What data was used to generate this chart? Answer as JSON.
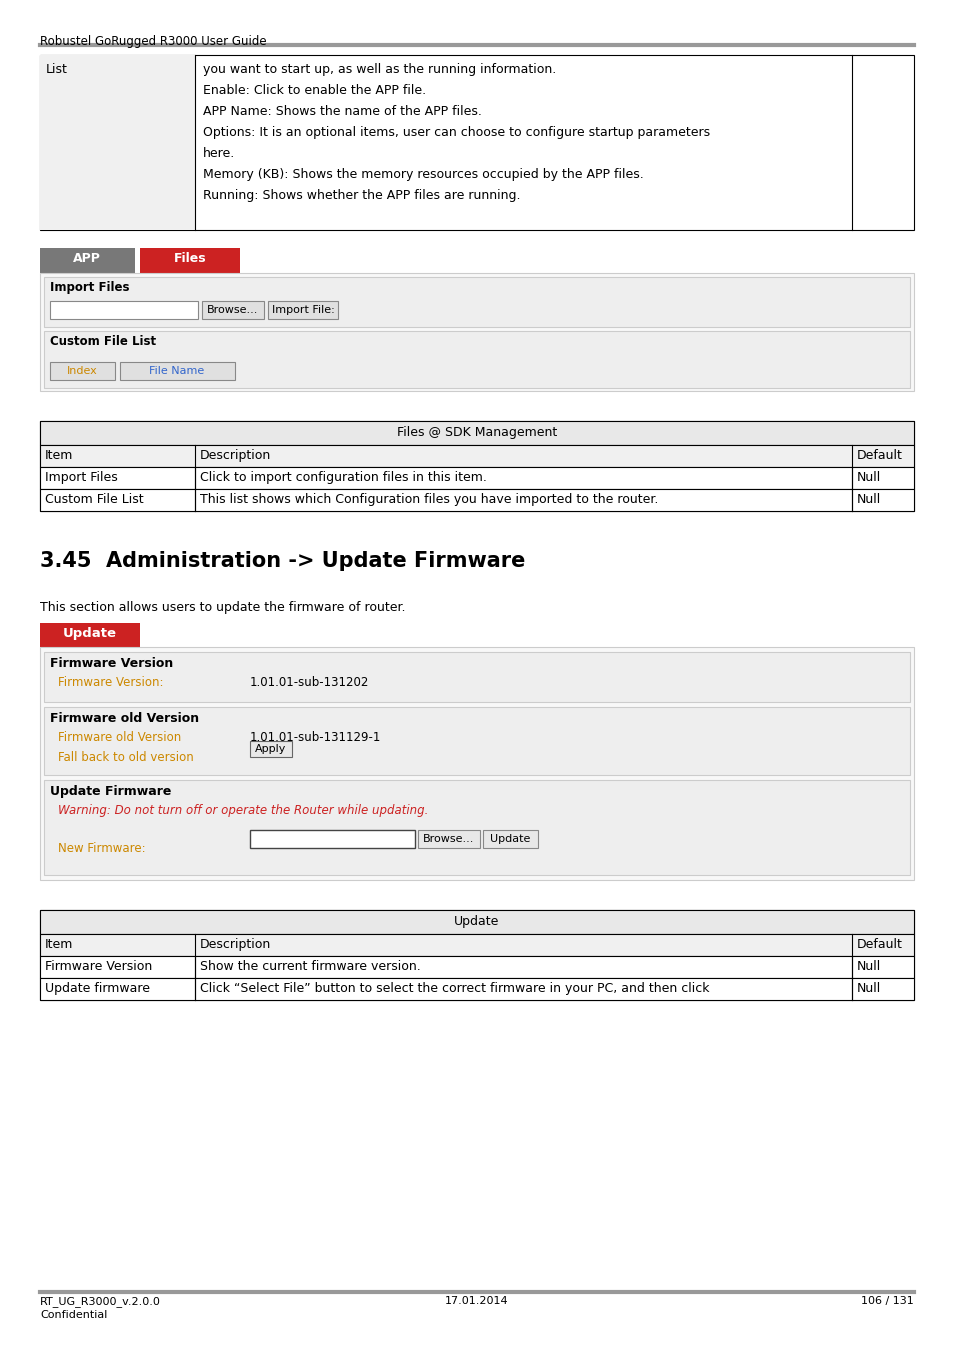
{
  "bg_color": "#ffffff",
  "header_text": "Robustel GoRugged R3000 User Guide",
  "header_line_color": "#999999",
  "top_table_col1": "List",
  "top_table_col2_lines": [
    "you want to start up, as well as the running information.",
    "Enable: Click to enable the APP file.",
    "APP Name: Shows the name of the APP files.",
    "Options: It is an optional items, user can choose to configure startup parameters",
    "here.",
    "Memory (KB): Shows the memory resources occupied by the APP files.",
    "Running: Shows whether the APP files are running."
  ],
  "tab_app_text": "APP",
  "tab_app_color": "#787878",
  "tab_files_text": "Files",
  "tab_files_color": "#cc2222",
  "import_files_label": "Import Files",
  "browse_btn": "Browse...",
  "import_btn": "Import File:",
  "custom_file_list_label": "Custom File List",
  "index_col": "Index",
  "filename_col": "File Name",
  "sdk_table_title": "Files @ SDK Management",
  "sdk_headers": [
    "Item",
    "Description",
    "Default"
  ],
  "sdk_rows": [
    [
      "Import Files",
      "Click to import configuration files in this item.",
      "Null"
    ],
    [
      "Custom File List",
      "This list shows which Configuration files you have imported to the router.",
      "Null"
    ]
  ],
  "section_title": "3.45  Administration -> Update Firmware",
  "section_desc": "This section allows users to update the firmware of router.",
  "update_tab_color": "#cc2222",
  "update_tab_text": "Update",
  "fw_version_section": "Firmware Version",
  "fw_version_label": "Firmware Version:",
  "fw_version_value": "1.01.01-sub-131202",
  "fw_old_section": "Firmware old Version",
  "fw_old_label1": "Firmware old Version",
  "fw_old_value1": "1.01.01-sub-131129-1",
  "fw_old_label2": "Fall back to old version",
  "apply_btn": "Apply",
  "update_fw_section": "Update Firmware",
  "warning_text": "Warning: Do not turn off or operate the Router while updating.",
  "new_fw_label": "New Firmware:",
  "browse_btn2": "Browse...",
  "update_btn": "Update",
  "update_table_title": "Update",
  "update_headers": [
    "Item",
    "Description",
    "Default"
  ],
  "update_rows": [
    [
      "Firmware Version",
      "Show the current firmware version.",
      "Null"
    ],
    [
      "Update firmware",
      "Click “Select File” button to select the correct firmware in your PC, and then click",
      "Null"
    ]
  ],
  "footer_line_color": "#999999",
  "footer_left1": "RT_UG_R3000_v.2.0.0",
  "footer_left2": "Confidential",
  "footer_center": "17.01.2014",
  "footer_right": "106 / 131",
  "label_color": "#cc8800",
  "table_header_bg": "#e8e8e8",
  "panel_bg": "#f5f5f5",
  "subsection_bg": "#eeeeee",
  "panel_border": "#cccccc"
}
